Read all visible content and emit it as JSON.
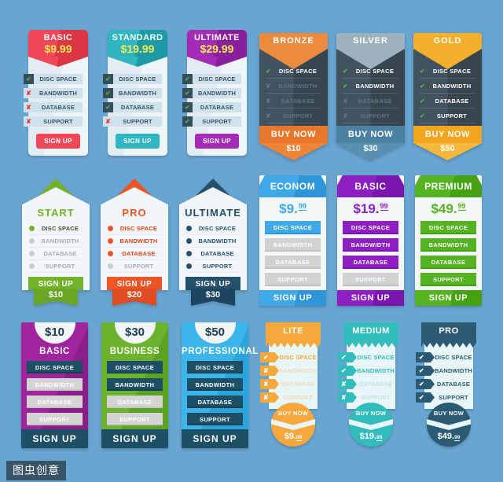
{
  "canvas": {
    "bg": "#69a5d1"
  },
  "watermark": {
    "text": "图虫创意"
  },
  "features": [
    "DISC SPACE",
    "BANDWIDTH",
    "DATABASE",
    "SUPPORT"
  ],
  "g1": {
    "cards": [
      {
        "title": "BASIC",
        "price": "$9.99",
        "cta": "SIGN UP",
        "color": "#f04858",
        "price_color": "#f9ee4f",
        "included": [
          true,
          false,
          false,
          false
        ]
      },
      {
        "title": "STANDARD",
        "price": "$19.99",
        "cta": "SIGN UP",
        "color": "#2fb6c0",
        "price_color": "#f9ee4f",
        "included": [
          true,
          true,
          true,
          false
        ]
      },
      {
        "title": "ULTIMATE",
        "price": "$29.99",
        "cta": "SIGN UP",
        "color": "#a42bb5",
        "price_color": "#f9ee4f",
        "included": [
          true,
          true,
          true,
          true
        ]
      }
    ]
  },
  "g2": {
    "cards": [
      {
        "title": "BRONZE",
        "cta": "BUY NOW",
        "price": "$10",
        "color": "#ec8b3d",
        "body_color": "#3b4b58",
        "included": [
          true,
          false,
          false,
          false
        ]
      },
      {
        "title": "SILVER",
        "cta": "BUY NOW",
        "price": "$30",
        "color": "#9db1be",
        "body_color": "#3b4b58",
        "included": [
          true,
          true,
          false,
          false
        ]
      },
      {
        "title": "GOLD",
        "cta": "BUY NOW",
        "price": "$50",
        "color": "#f4b02c",
        "body_color": "#3b4b58",
        "included": [
          true,
          true,
          true,
          true
        ]
      }
    ]
  },
  "g3": {
    "cards": [
      {
        "title": "START",
        "cta": "SIGN UP",
        "price": "$10",
        "color": "#72b32a",
        "included": [
          true,
          false,
          false,
          false
        ]
      },
      {
        "title": "PRO",
        "cta": "SIGN UP",
        "price": "$20",
        "color": "#ee5526",
        "included": [
          true,
          true,
          true,
          false
        ]
      },
      {
        "title": "ULTIMATE",
        "cta": "SIGN UP",
        "price": "$30",
        "color": "#24506c",
        "included": [
          true,
          true,
          true,
          true
        ]
      }
    ]
  },
  "g4": {
    "cards": [
      {
        "title": "ECONOM",
        "price_main": "$9.",
        "price_sup": "99",
        "cta": "SIGN UP",
        "color": "#3fa9e8",
        "included": [
          true,
          false,
          false,
          false
        ]
      },
      {
        "title": "BASIC",
        "price_main": "$19.",
        "price_sup": "99",
        "cta": "SIGN UP",
        "color": "#8e1fc3",
        "included": [
          true,
          true,
          true,
          false
        ]
      },
      {
        "title": "PREMIUM",
        "price_main": "$49.",
        "price_sup": "99",
        "cta": "SIGN UP",
        "color": "#55b221",
        "included": [
          true,
          true,
          true,
          true
        ]
      }
    ]
  },
  "g5": {
    "cards": [
      {
        "price": "$10",
        "title": "BASIC",
        "cta": "SIGN UP",
        "color": "#a0249c",
        "row_color": "#1d4f66",
        "included": [
          true,
          false,
          false,
          false
        ]
      },
      {
        "price": "$30",
        "title": "BUSINESS",
        "cta": "SIGN UP",
        "color": "#6cb32e",
        "row_color": "#1d4f66",
        "included": [
          true,
          true,
          false,
          false
        ]
      },
      {
        "price": "$50",
        "title": "PROFESSIONAL",
        "cta": "SIGN UP",
        "color": "#3cb6ea",
        "row_color": "#1d4f66",
        "included": [
          true,
          true,
          true,
          true
        ]
      }
    ]
  },
  "g6": {
    "cards": [
      {
        "title": "LITE",
        "cta": "BUY NOW",
        "price_main": "$9.",
        "price_sup": "99",
        "color": "#f6a83d",
        "included": [
          true,
          false,
          false,
          false
        ]
      },
      {
        "title": "MEDIUM",
        "cta": "BUY NOW",
        "price_main": "$19.",
        "price_sup": "99",
        "color": "#32bcbc",
        "included": [
          true,
          true,
          false,
          false
        ]
      },
      {
        "title": "PRO",
        "cta": "BUY NOW",
        "price_main": "$49.",
        "price_sup": "99",
        "color": "#2a5a74",
        "included": [
          true,
          true,
          true,
          true
        ]
      }
    ]
  }
}
